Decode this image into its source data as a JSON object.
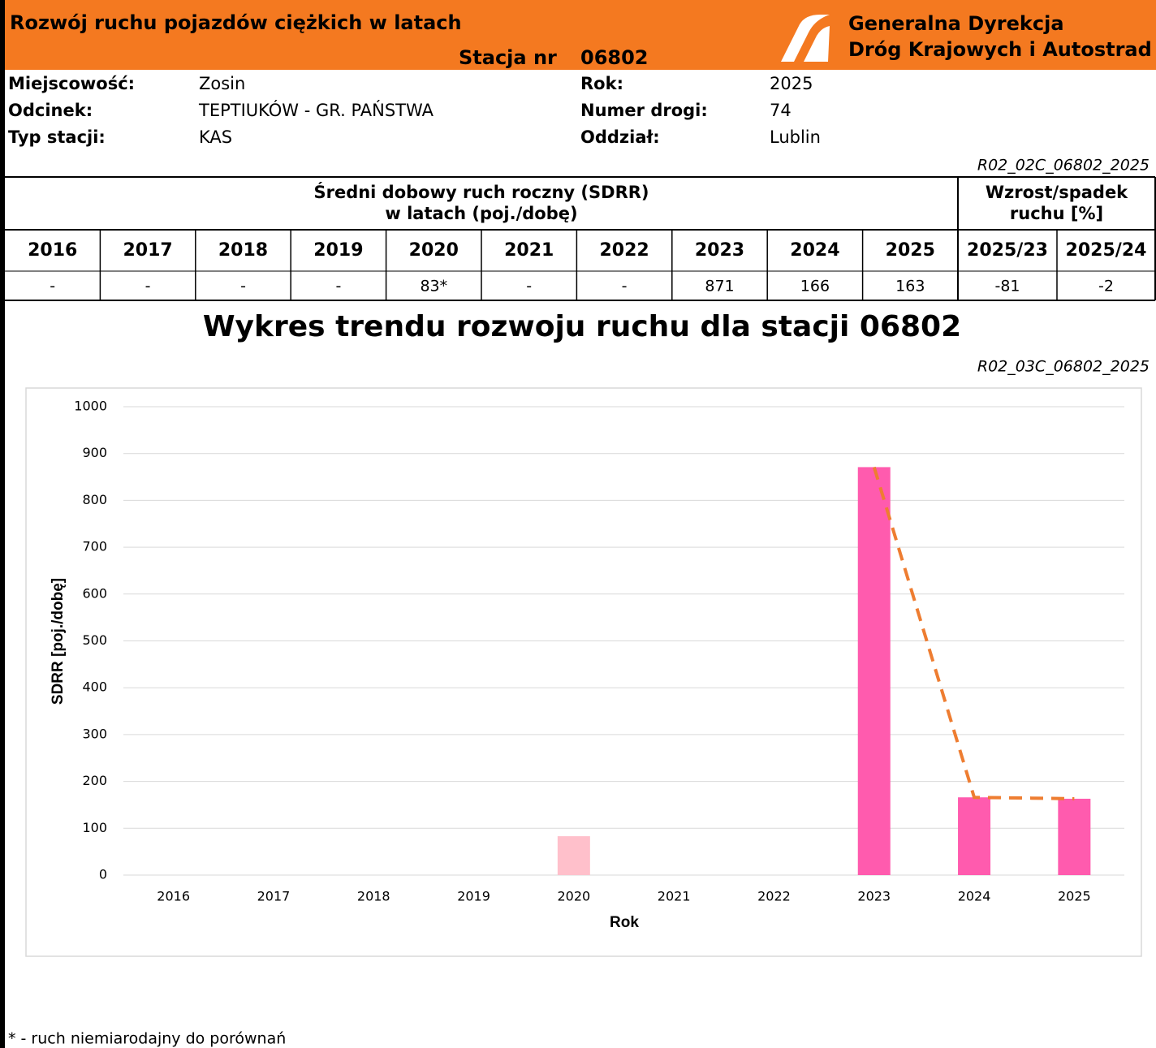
{
  "header": {
    "title": "Rozwój ruchu pojazdów ciężkich w latach",
    "station_label": "Stacja nr",
    "station_number": "06802",
    "org_line1": "Generalna Dyrekcja",
    "org_line2": "Dróg Krajowych i Autostrad"
  },
  "info": {
    "rows": [
      [
        "Miejscowość:",
        "Zosin",
        "Rok:",
        "2025"
      ],
      [
        "Odcinek:",
        "TEPTIUKÓW - GR. PAŃSTWA",
        "Numer drogi:",
        "74"
      ],
      [
        "Typ stacji:",
        "KAS",
        "Oddział:",
        "Lublin"
      ]
    ],
    "code": "R02_02C_06802_2025"
  },
  "table": {
    "group_header": [
      "Średni dobowy ruch roczny (SDRR)",
      "w latach (poj./dobę)"
    ],
    "change_header": [
      "Wzrost/spadek",
      "ruchu [%]"
    ],
    "columns": [
      "2016",
      "2017",
      "2018",
      "2019",
      "2020",
      "2021",
      "2022",
      "2023",
      "2024",
      "2025",
      "2025/23",
      "2025/24"
    ],
    "values": [
      "-",
      "-",
      "-",
      "-",
      "83*",
      "-",
      "-",
      "871",
      "166",
      "163",
      "-81",
      "-2"
    ]
  },
  "chart_data": {
    "type": "bar",
    "title": "Wykres trendu rozwoju ruchu dla stacji 06802",
    "code": "R02_03C_06802_2025",
    "categories": [
      "2016",
      "2017",
      "2018",
      "2019",
      "2020",
      "2021",
      "2022",
      "2023",
      "2024",
      "2025"
    ],
    "values": [
      null,
      null,
      null,
      null,
      83,
      null,
      null,
      871,
      166,
      163
    ],
    "colors": [
      "#FF5BAE",
      "#FF5BAE",
      "#FF5BAE",
      "#FF5BAE",
      "#FFC0CB",
      "#FF5BAE",
      "#FF5BAE",
      "#FF5BAE",
      "#FF5BAE",
      "#FF5BAE"
    ],
    "trend": {
      "values": [
        null,
        null,
        null,
        null,
        null,
        null,
        null,
        871,
        166,
        163
      ],
      "color": "#EE7D31",
      "dashed": true
    },
    "ylim": [
      0,
      1000
    ],
    "yticks": [
      0,
      100,
      200,
      300,
      400,
      500,
      600,
      700,
      800,
      900,
      1000
    ],
    "grid": true,
    "xlabel": "Rok",
    "ylabel": "SDRR [poj./dobę]"
  },
  "footnote": "* - ruch niemiarodajny do porównań"
}
